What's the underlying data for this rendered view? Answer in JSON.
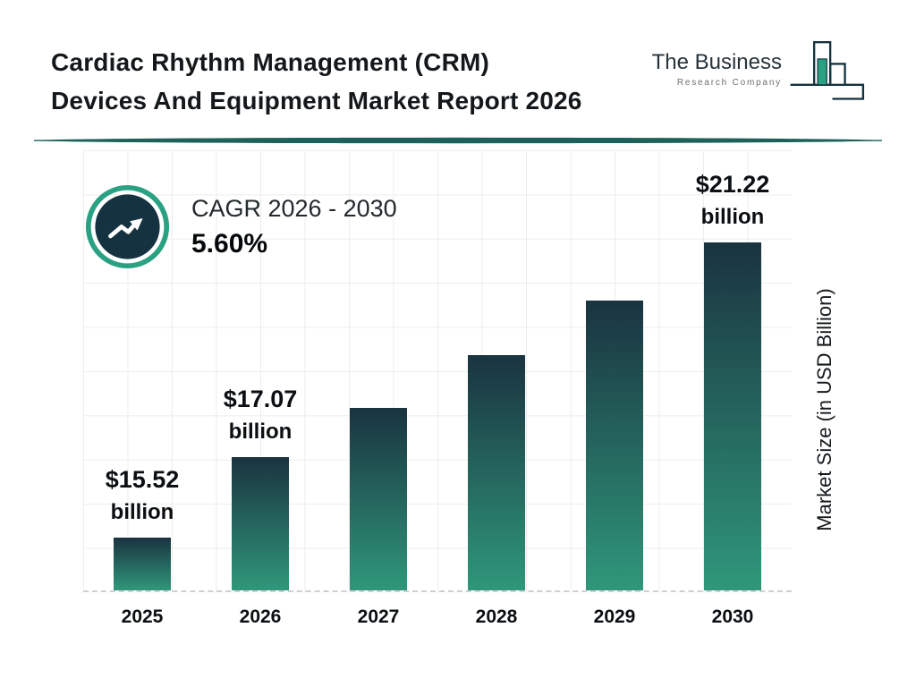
{
  "header": {
    "title_line1": "Cardiac Rhythm Management (CRM)",
    "title_line2": "Devices And Equipment Market Report 2026"
  },
  "logo": {
    "name_line1": "The Business",
    "name_line2": "Research Company"
  },
  "cagr": {
    "label": "CAGR 2026 - 2030",
    "value": "5.60%"
  },
  "chart_data": {
    "type": "bar",
    "categories": [
      "2025",
      "2026",
      "2027",
      "2028",
      "2029",
      "2030"
    ],
    "values": [
      15.52,
      17.07,
      18.03,
      19.04,
      20.1,
      21.22
    ],
    "bar_labels": [
      {
        "value": "$15.52",
        "unit": "billion"
      },
      {
        "value": "$17.07",
        "unit": "billion"
      },
      null,
      null,
      null,
      {
        "value": "$21.22",
        "unit": "billion"
      }
    ],
    "xlabel": "",
    "ylabel": "Market Size (in USD Billion)",
    "ylim": [
      14.5,
      23
    ],
    "grid": true,
    "legend": false,
    "colors": {
      "bar_gradient_top": "#1a3340",
      "bar_gradient_bottom": "#2f977a",
      "accent_teal": "#2aa183",
      "dark_navy": "#14323f",
      "divider_teal": "#1d615a"
    }
  }
}
